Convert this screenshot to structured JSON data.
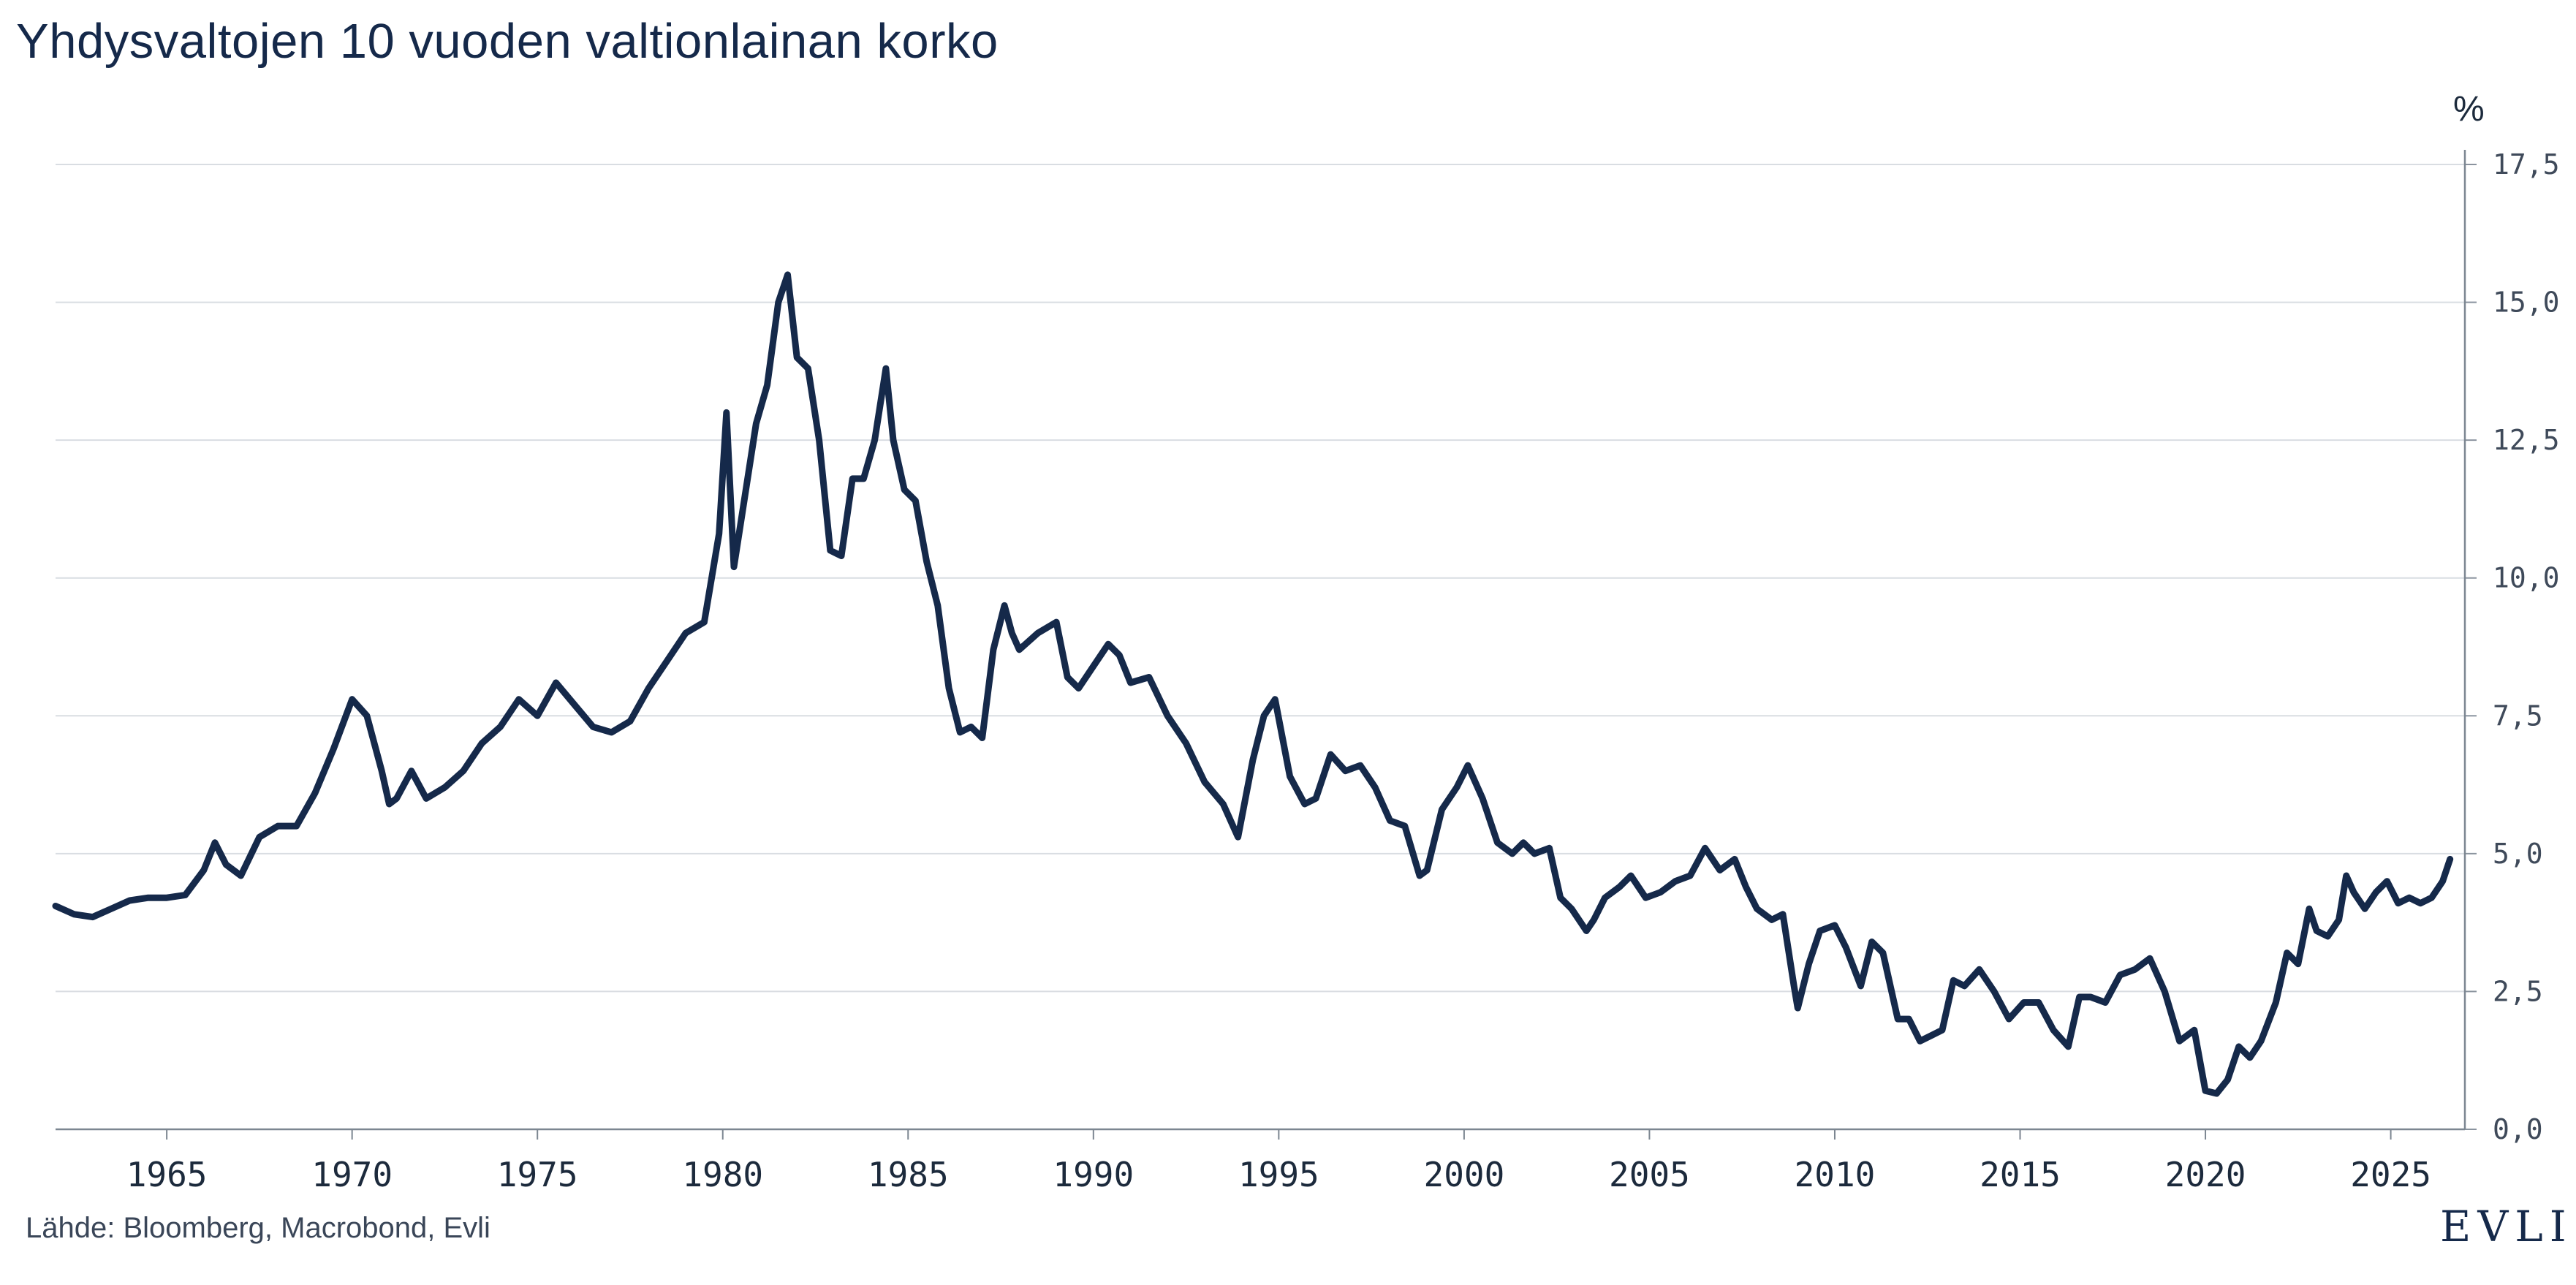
{
  "chart_data": {
    "type": "line",
    "title": "Yhdysvaltojen 10 vuoden valtionlainan korko",
    "ylabel": "%",
    "xlabel": "",
    "source": "Lähde: Bloomberg, Macrobond, Evli",
    "brand": "EVLI",
    "ylim": [
      0,
      17.5
    ],
    "xlim": [
      1962.0,
      2027.0
    ],
    "y_ticks": [
      "0,0",
      "2,5",
      "5,0",
      "7,5",
      "10,0",
      "12,5",
      "15,0",
      "17,5"
    ],
    "x_ticks": [
      "1965",
      "1970",
      "1975",
      "1980",
      "1985",
      "1990",
      "1995",
      "2000",
      "2005",
      "2010",
      "2015",
      "2020",
      "2025"
    ],
    "grid": true,
    "y_axis_position": "right",
    "line_color": "#15294a",
    "series": [
      {
        "x": [
          1962.0,
          1962.5,
          1963.0,
          1963.5,
          1964.0,
          1964.5,
          1965.0,
          1965.5,
          1966.0,
          1966.3,
          1966.6,
          1967.0,
          1967.5,
          1968.0,
          1968.5,
          1969.0,
          1969.5,
          1970.0,
          1970.4,
          1970.8,
          1971.0,
          1971.2,
          1971.6,
          1972.0,
          1972.5,
          1973.0,
          1973.5,
          1974.0,
          1974.5,
          1975.0,
          1975.5,
          1976.0,
          1976.5,
          1977.0,
          1977.5,
          1978.0,
          1978.5,
          1979.0,
          1979.5,
          1979.9,
          1980.1,
          1980.3,
          1980.6,
          1980.9,
          1981.2,
          1981.5,
          1981.75,
          1982.0,
          1982.3,
          1982.6,
          1982.9,
          1983.2,
          1983.5,
          1983.8,
          1984.1,
          1984.4,
          1984.6,
          1984.9,
          1985.2,
          1985.5,
          1985.8,
          1986.1,
          1986.4,
          1986.7,
          1987.0,
          1987.3,
          1987.6,
          1987.8,
          1988.0,
          1988.5,
          1989.0,
          1989.3,
          1989.6,
          1990.0,
          1990.4,
          1990.7,
          1991.0,
          1991.5,
          1992.0,
          1992.5,
          1993.0,
          1993.5,
          1993.9,
          1994.3,
          1994.6,
          1994.9,
          1995.3,
          1995.7,
          1996.0,
          1996.4,
          1996.8,
          1997.2,
          1997.6,
          1998.0,
          1998.4,
          1998.8,
          1999.0,
          1999.4,
          1999.8,
          2000.1,
          2000.5,
          2000.9,
          2001.3,
          2001.6,
          2001.9,
          2002.3,
          2002.6,
          2002.9,
          2003.3,
          2003.5,
          2003.8,
          2004.2,
          2004.5,
          2004.9,
          2005.3,
          2005.7,
          2006.1,
          2006.5,
          2006.9,
          2007.3,
          2007.6,
          2007.9,
          2008.3,
          2008.6,
          2008.9,
          2009.0,
          2009.3,
          2009.6,
          2010.0,
          2010.3,
          2010.7,
          2011.0,
          2011.3,
          2011.7,
          2012.0,
          2012.3,
          2012.6,
          2012.9,
          2013.2,
          2013.5,
          2013.9,
          2014.3,
          2014.7,
          2015.1,
          2015.5,
          2015.9,
          2016.3,
          2016.6,
          2016.9,
          2017.3,
          2017.7,
          2018.1,
          2018.5,
          2018.9,
          2019.3,
          2019.7,
          2020.0,
          2020.3,
          2020.6,
          2020.9,
          2021.2,
          2021.5,
          2021.9,
          2022.2,
          2022.5,
          2022.8,
          2023.0,
          2023.3,
          2023.6,
          2023.8,
          2024.0,
          2024.3,
          2024.6,
          2024.9,
          2025.2,
          2025.5,
          2025.8,
          2026.1,
          2026.4,
          2026.6
        ],
        "values": [
          4.05,
          3.9,
          3.85,
          4.0,
          4.15,
          4.2,
          4.2,
          4.25,
          4.7,
          5.2,
          4.8,
          4.6,
          5.3,
          5.5,
          5.5,
          6.1,
          6.9,
          7.8,
          7.5,
          6.5,
          5.9,
          6.0,
          6.5,
          6.0,
          6.2,
          6.5,
          7.0,
          7.3,
          7.8,
          7.5,
          8.1,
          7.7,
          7.3,
          7.2,
          7.4,
          8.0,
          8.5,
          9.0,
          9.2,
          10.8,
          13.0,
          10.2,
          11.5,
          12.8,
          13.5,
          15.0,
          15.5,
          14.0,
          13.8,
          12.5,
          10.5,
          10.4,
          11.8,
          11.8,
          12.5,
          13.8,
          12.5,
          11.6,
          11.4,
          10.3,
          9.5,
          8.0,
          7.2,
          7.3,
          7.1,
          8.7,
          9.5,
          9.0,
          8.7,
          9.0,
          9.2,
          8.2,
          8.0,
          8.4,
          8.8,
          8.6,
          8.1,
          8.2,
          7.5,
          7.0,
          6.3,
          5.9,
          5.3,
          6.7,
          7.5,
          7.8,
          6.4,
          5.9,
          6.0,
          6.8,
          6.5,
          6.6,
          6.2,
          5.6,
          5.5,
          4.6,
          4.7,
          5.8,
          6.2,
          6.6,
          6.0,
          5.2,
          5.0,
          5.2,
          5.0,
          5.1,
          4.2,
          4.0,
          3.6,
          3.8,
          4.2,
          4.4,
          4.6,
          4.2,
          4.3,
          4.5,
          4.6,
          5.1,
          4.7,
          4.9,
          4.4,
          4.0,
          3.8,
          3.9,
          2.6,
          2.2,
          3.0,
          3.6,
          3.7,
          3.3,
          2.6,
          3.4,
          3.2,
          2.0,
          2.0,
          1.6,
          1.7,
          1.8,
          2.7,
          2.6,
          2.9,
          2.5,
          2.0,
          2.3,
          2.3,
          1.8,
          1.5,
          2.4,
          2.4,
          2.3,
          2.8,
          2.9,
          3.1,
          2.5,
          1.6,
          1.8,
          0.7,
          0.65,
          0.9,
          1.5,
          1.3,
          1.6,
          2.3,
          3.2,
          3.0,
          4.0,
          3.6,
          3.5,
          3.8,
          4.6,
          4.3,
          4.0,
          4.3,
          4.5,
          4.1,
          4.2,
          4.1,
          4.2,
          4.5,
          4.9
        ]
      }
    ]
  }
}
